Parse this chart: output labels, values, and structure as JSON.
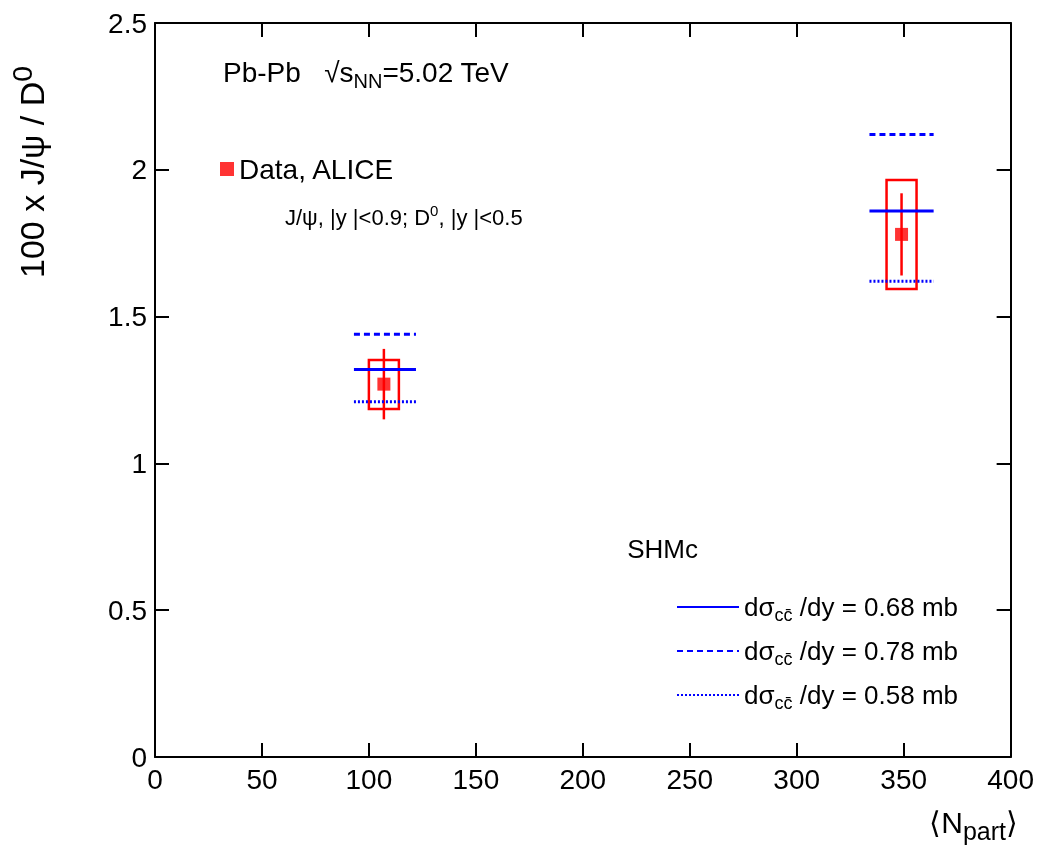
{
  "chart_data": {
    "type": "scatter",
    "xlabel": "⟨N$_{part}$⟩",
    "ylabel": "100 x J/ψ / D$^{0}$",
    "legend_title": "SHMc",
    "annotations": [
      "Pb-Pb   √s$_{NN}$=5.02 TeV",
      "J/ψ, |y |<0.9; D$^{0}$, |y |<0.5"
    ],
    "xlim": [
      0,
      400
    ],
    "xticks": [
      0,
      50,
      100,
      150,
      200,
      250,
      300,
      350,
      400
    ],
    "ylim": [
      0,
      2.5
    ],
    "yticks": [
      0,
      0.5,
      1,
      1.5,
      2,
      2.5
    ],
    "grid": false,
    "legend": "bottom right",
    "series": [
      {
        "type": "bar",
        "color": "#ff0000",
        "x": [
          107,
          349
        ],
        "base": [
          1.185,
          1.594
        ],
        "values": [
          0.167,
          0.371
        ]
      },
      {
        "name": "Data, ALICE",
        "color": "#ff0000",
        "marker": "square",
        "x": [
          107,
          349
        ],
        "values": [
          1.27,
          1.78
        ],
        "errors": [
          0.12,
          0.14
        ]
      },
      {
        "type": "line",
        "name": "dσ$_{cc̄}$ /dy = 0.68 mb",
        "color": "#0000ff",
        "line_style": "solid",
        "x": [
          93,
          122,
          228,
          334,
          364
        ],
        "values": [
          1.32,
          1.32,
          null,
          1.86,
          1.86
        ]
      },
      {
        "type": "line",
        "name": "dσ$_{cc̄}$ /dy = 0.78 mb",
        "color": "#0000ff",
        "line_style": "dashed",
        "x": [
          93,
          122,
          228,
          334,
          364
        ],
        "values": [
          1.44,
          1.44,
          null,
          2.12,
          2.12
        ]
      },
      {
        "type": "line",
        "name": "dσ$_{cc̄}$ /dy = 0.58 mb",
        "color": "#0000ff",
        "line_style": "dotted",
        "x": [
          93,
          122,
          228,
          334,
          364
        ],
        "values": [
          1.21,
          1.21,
          null,
          1.62,
          1.62
        ]
      }
    ]
  }
}
